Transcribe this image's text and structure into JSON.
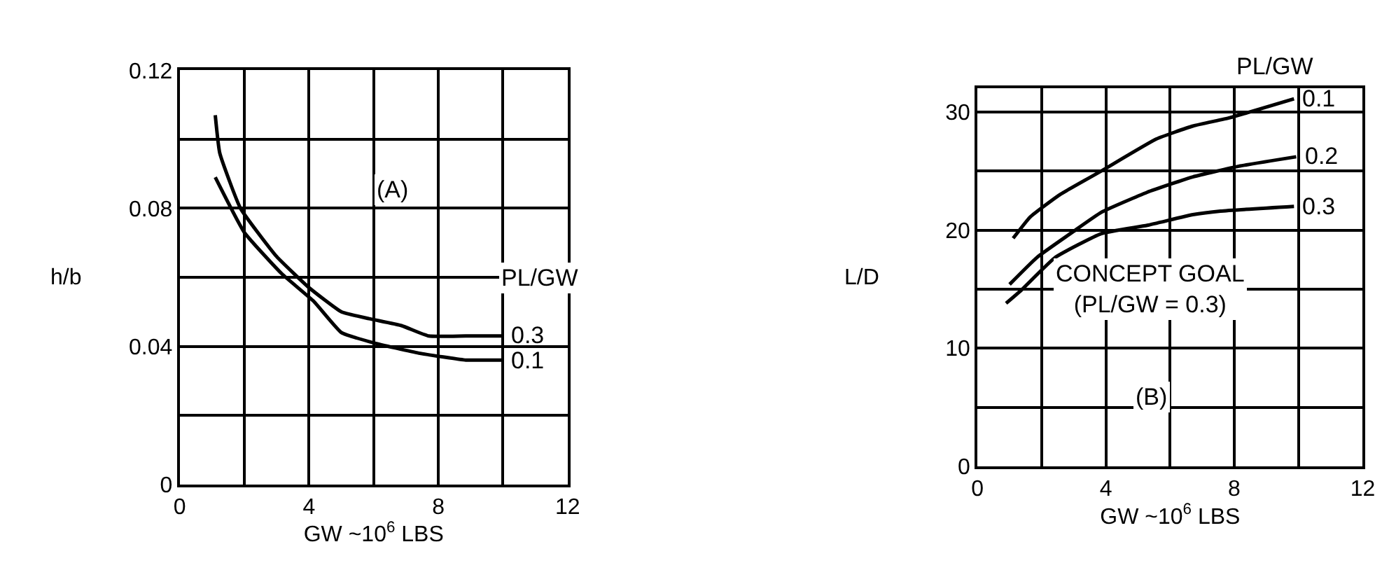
{
  "chart_data": [
    {
      "type": "line",
      "xlabel": "GW ~10$^{6}$ LBS",
      "ylabel": "h/b",
      "xlim": [
        0,
        12
      ],
      "ylim": [
        0,
        0.12
      ],
      "grid": true,
      "marker": "none",
      "line_style": "solid",
      "xticks": [
        0,
        {
          "value": 2,
          "label": null
        },
        4,
        {
          "value": 6,
          "label": null
        },
        8,
        {
          "value": 10,
          "label": null
        },
        12
      ],
      "yticks": [
        0,
        {
          "value": 0.02,
          "label": null
        },
        0.04,
        {
          "value": 0.06,
          "label": null
        },
        0.08,
        {
          "value": 0.1,
          "label": null
        },
        0.12
      ],
      "series": [
        {
          "name": "0.3",
          "color": "#000000",
          "x": [
            1.1,
            1.24,
            1.88,
            3.0,
            4.0,
            5.0,
            5.86,
            6.86,
            7.7,
            8.85,
            10
          ],
          "values": [
            0.107,
            0.096,
            0.08,
            0.066,
            0.057,
            0.05,
            0.048,
            0.046,
            0.043,
            0.043,
            0.043
          ]
        },
        {
          "name": "0.1",
          "color": "#000000",
          "x": [
            1.1,
            2.0,
            3.16,
            4.15,
            5.0,
            6.0,
            7.4,
            8.85,
            9.1,
            10
          ],
          "values": [
            0.089,
            0.073,
            0.061,
            0.053,
            0.044,
            0.041,
            0.038,
            0.036,
            0.036,
            0.036
          ]
        }
      ],
      "annotations": [
        "PL/GW",
        "(A)"
      ]
    },
    {
      "type": "line",
      "xlabel": "GW ~10$^{6}$ LBS",
      "ylabel": "L/D",
      "xlim": [
        0,
        12
      ],
      "ylim": [
        0,
        32
      ],
      "grid": true,
      "marker": "none",
      "line_style": "solid",
      "xticks": [
        0,
        {
          "value": 2,
          "label": null
        },
        4,
        {
          "value": 6,
          "label": null
        },
        8,
        {
          "value": 10,
          "label": null
        },
        12
      ],
      "yticks": [
        0,
        {
          "value": 5,
          "label": null
        },
        10,
        {
          "value": 15,
          "label": null
        },
        20,
        {
          "value": 25,
          "label": null
        },
        30
      ],
      "series": [
        {
          "name": "0.1",
          "color": "#000000",
          "x": [
            1.11,
            1.64,
            2.57,
            3.86,
            5.57,
            6.71,
            7.86,
            9.86
          ],
          "values": [
            19.3,
            21.1,
            23.0,
            25.0,
            27.7,
            28.8,
            29.5,
            31.1
          ]
        },
        {
          "name": "0.2",
          "color": "#000000",
          "x": [
            1.0,
            1.86,
            3.0,
            3.86,
            5.29,
            6.71,
            8.14,
            9.93
          ],
          "values": [
            15.4,
            17.7,
            19.9,
            21.5,
            23.2,
            24.5,
            25.4,
            26.2
          ]
        },
        {
          "name": "0.3",
          "color": "#000000",
          "x": [
            0.89,
            1.36,
            2.43,
            3.86,
            5.29,
            6.71,
            7.57,
            9.86
          ],
          "values": [
            13.8,
            14.9,
            17.7,
            19.7,
            20.4,
            21.3,
            21.6,
            22.0
          ]
        }
      ],
      "annotations": [
        "PL/GW",
        "CONCEPT GOAL\n(PL/GW = 0.3)",
        "(B)"
      ]
    }
  ]
}
